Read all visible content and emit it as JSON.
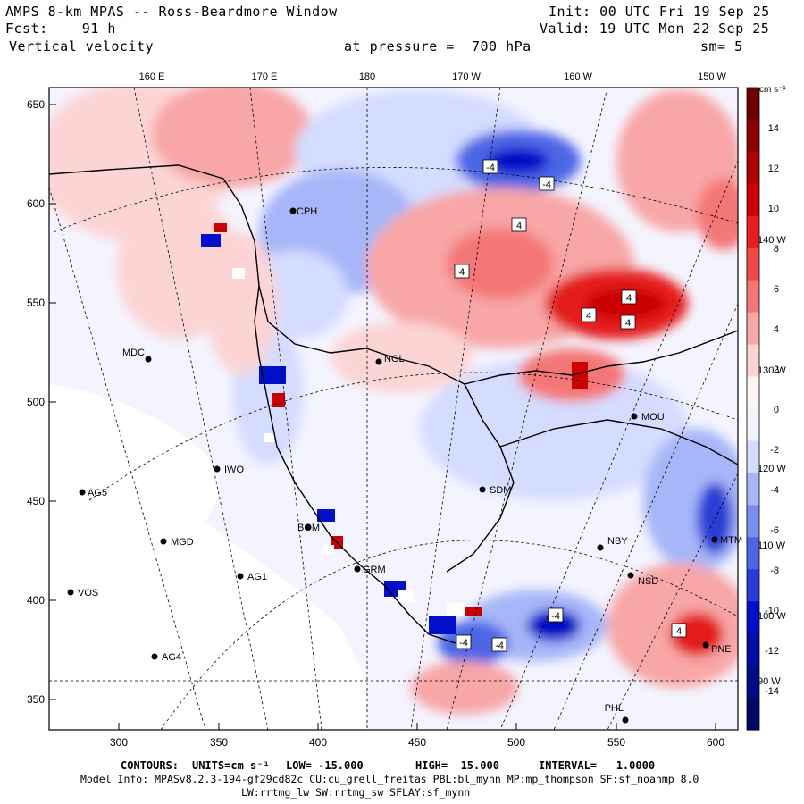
{
  "header": {
    "title": "AMPS 8-km MPAS -- Ross-Beardmore Window",
    "fcst": "Fcst:    91 h",
    "field": "Vertical velocity",
    "pressure": "at pressure =  700 hPa",
    "init": "Init: 00 UTC Fri 19 Sep 25",
    "valid": "Valid: 19 UTC Mon 22 Sep 25",
    "smoothing": "sm= 5"
  },
  "axes": {
    "x_ticks": [
      "300",
      "350",
      "400",
      "450",
      "500",
      "550",
      "600"
    ],
    "y_ticks": [
      "650",
      "600",
      "550",
      "500",
      "450",
      "400",
      "350"
    ],
    "lon_labels_top": [
      "160 E",
      "170 E",
      "180",
      "170 W",
      "160 W",
      "150 W"
    ],
    "lon_labels_right": [
      "140 W",
      "130 W",
      "120 W",
      "110 W",
      "100 W",
      "90 W"
    ]
  },
  "colorbar": {
    "units": "cm s⁻¹",
    "labels": [
      "14",
      "12",
      "10",
      "8",
      "6",
      "4",
      "2",
      "0",
      "-2",
      "-4",
      "-6",
      "-8",
      "-10",
      "-12",
      "-14"
    ],
    "colors": [
      "#6e0000",
      "#8e0000",
      "#ad0000",
      "#cc0000",
      "#e51e1e",
      "#f04a4a",
      "#f47777",
      "#f8a6a6",
      "#fcd4d4",
      "#fff4f4",
      "#f4f4ff",
      "#d4dcff",
      "#a6b6f8",
      "#7a8ef0",
      "#4e66e6",
      "#2a3cd6",
      "#0010c8",
      "#000ea6",
      "#000b86",
      "#000866"
    ]
  },
  "stations": [
    {
      "name": "MDC"
    },
    {
      "name": "AG5"
    },
    {
      "name": "IWO"
    },
    {
      "name": "MGD"
    },
    {
      "name": "AG1"
    },
    {
      "name": "VOS"
    },
    {
      "name": "AG4"
    },
    {
      "name": "CPH"
    },
    {
      "name": "NGL"
    },
    {
      "name": "MOU"
    },
    {
      "name": "SDM"
    },
    {
      "name": "NBY"
    },
    {
      "name": "NSD"
    },
    {
      "name": "PNE"
    },
    {
      "name": "PHL"
    },
    {
      "name": "BOM"
    },
    {
      "name": "GRM"
    },
    {
      "name": "MTM"
    }
  ],
  "contour_labels": [
    "-4",
    "-4",
    "4",
    "4",
    "4",
    "4",
    "4",
    "-4",
    "-4",
    "-4",
    "4"
  ],
  "footer": {
    "contours_label": "CONTOURS:",
    "units_label": "UNITS=cm s⁻¹",
    "low": "LOW= -15.000",
    "high": "HIGH=  15.000",
    "interval": "INTERVAL=   1.0000",
    "model_info": "Model Info: MPASv8.2.3-194-gf29cd82c CU:cu_grell_freitas PBL:bl_mynn MP:mp_thompson SF:sf_noahmp 8.0",
    "model_info2": "LW:rrtmg_lw SW:rrtmg_sw SFLAY:sf_mynn"
  }
}
